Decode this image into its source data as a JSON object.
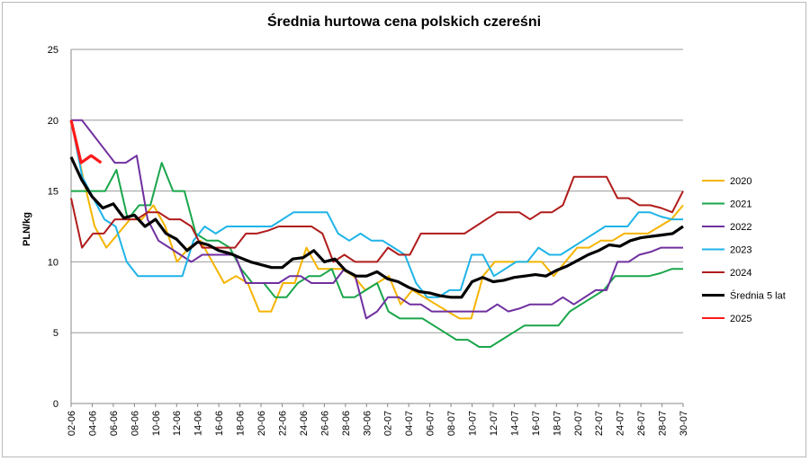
{
  "chart_data": {
    "type": "line",
    "title": "Średnia hurtowa cena polskich czereśni",
    "xlabel": "",
    "ylabel": "PLN/kg",
    "ylim": [
      0,
      25
    ],
    "yticks": [
      0,
      5,
      10,
      15,
      20,
      25
    ],
    "grid": true,
    "legend_position": "right",
    "x_tick_labels": [
      "02-06",
      "04-06",
      "06-06",
      "08-06",
      "10-06",
      "12-06",
      "14-06",
      "16-06",
      "18-06",
      "20-06",
      "22-06",
      "24-06",
      "26-06",
      "28-06",
      "30-06",
      "02-07",
      "04-07",
      "06-07",
      "08-07",
      "10-07",
      "12-07",
      "14-07",
      "16-07",
      "18-07",
      "20-07",
      "22-07",
      "24-07",
      "26-07",
      "28-07",
      "30-07"
    ],
    "series": [
      {
        "name": "2020",
        "color": "#f5b400",
        "values": [
          20,
          16,
          12.5,
          11,
          12,
          13,
          13,
          14,
          12.5,
          10,
          11,
          11.5,
          10,
          8.5,
          9,
          8.5,
          6.5,
          6.5,
          8.5,
          8.5,
          11,
          9.5,
          9.5,
          9.5,
          9,
          8,
          8.5,
          9,
          7,
          8,
          7.5,
          7,
          6.5,
          6,
          6,
          9,
          10,
          10,
          10,
          10,
          10,
          9,
          10,
          11,
          11,
          11.5,
          11.5,
          12,
          12,
          12,
          12.5,
          13,
          14
        ]
      },
      {
        "name": "2021",
        "color": "#1aa64b",
        "values": [
          15,
          15,
          15,
          15,
          16.5,
          13,
          14,
          14,
          17,
          15,
          15,
          12,
          11.5,
          11.5,
          11,
          9.5,
          8.5,
          8.5,
          7.5,
          7.5,
          8.5,
          9,
          9,
          9.5,
          7.5,
          7.5,
          8,
          8.5,
          6.5,
          6,
          6,
          6,
          5.5,
          5,
          4.5,
          4.5,
          4,
          4,
          4.5,
          5,
          5.5,
          5.5,
          5.5,
          5.5,
          6.5,
          7,
          7.5,
          8,
          9,
          9,
          9,
          9,
          9.2,
          9.5,
          9.5
        ]
      },
      {
        "name": "2022",
        "color": "#7030a0",
        "values": [
          20,
          20,
          19,
          18,
          17,
          17,
          17.5,
          13,
          11.5,
          11,
          10.5,
          10,
          10.5,
          10.5,
          10.5,
          10.5,
          8.5,
          8.5,
          8.5,
          8.5,
          9,
          9,
          8.5,
          8.5,
          8.5,
          9.5,
          9,
          6,
          6.5,
          7.5,
          7.5,
          7,
          7,
          6.5,
          6.5,
          6.5,
          6.5,
          6.5,
          6.5,
          7,
          6.5,
          6.7,
          7,
          7,
          7,
          7.5,
          7,
          7.5,
          8,
          8,
          10,
          10,
          10.5,
          10.7,
          11,
          11,
          11
        ]
      },
      {
        "name": "2023",
        "color": "#1fb4e8",
        "values": [
          20,
          16,
          14.5,
          13,
          12.5,
          10,
          9,
          9,
          9,
          9,
          9,
          11.5,
          12.5,
          12,
          12.5,
          12.5,
          12.5,
          12.5,
          12.5,
          13,
          13.5,
          13.5,
          13.5,
          13.5,
          12,
          11.5,
          12,
          11.5,
          11.5,
          11,
          10.5,
          8.5,
          7.5,
          7.5,
          8,
          8,
          10.5,
          10.5,
          9,
          9.5,
          10,
          10,
          11,
          10.5,
          10.5,
          11,
          11.5,
          12,
          12.5,
          12.5,
          12.5,
          13.5,
          13.5,
          13.2,
          13,
          13
        ]
      },
      {
        "name": "2024",
        "color": "#b01c1c",
        "values": [
          14.5,
          11,
          12,
          12,
          13,
          13,
          13,
          13.5,
          13.5,
          13,
          13,
          12.5,
          11,
          11,
          11,
          11,
          12,
          12,
          12.2,
          12.5,
          12.5,
          12.5,
          12.5,
          12,
          10,
          10.5,
          10,
          10,
          10,
          11,
          10.5,
          10.5,
          12,
          12,
          12,
          12,
          12,
          12.5,
          13,
          13.5,
          13.5,
          13.5,
          13,
          13.5,
          13.5,
          14,
          16,
          16,
          16,
          16,
          14.5,
          14.5,
          14,
          14,
          13.8,
          13.5,
          15
        ]
      },
      {
        "name": "Średnia 5 lat",
        "color": "#000000",
        "values": [
          17.4,
          15.8,
          14.6,
          13.8,
          14.1,
          13.1,
          13.3,
          12.5,
          13,
          12,
          11.6,
          10.8,
          11.4,
          11.2,
          10.8,
          10.6,
          10.3,
          10,
          9.8,
          9.6,
          9.6,
          10.2,
          10.3,
          10.8,
          10,
          10.2,
          9.4,
          9,
          9,
          9.3,
          8.8,
          8.6,
          8.2,
          7.9,
          7.8,
          7.6,
          7.5,
          7.5,
          8.6,
          8.9,
          8.6,
          8.7,
          8.9,
          9,
          9.1,
          9,
          9.4,
          9.7,
          10.1,
          10.5,
          10.8,
          11.2,
          11.1,
          11.5,
          11.7,
          11.8,
          11.9,
          12,
          12.5
        ]
      },
      {
        "name": "2025",
        "color": "#ff1a1a",
        "values": [
          20,
          17,
          17.5,
          17
        ]
      }
    ]
  }
}
